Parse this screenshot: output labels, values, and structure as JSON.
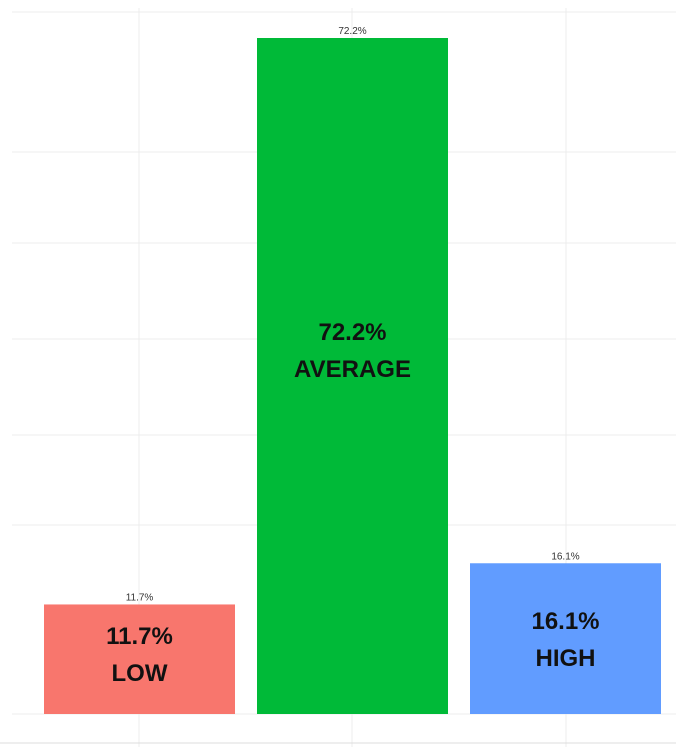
{
  "chart_data": {
    "type": "bar",
    "categories": [
      "LOW",
      "AVERAGE",
      "HIGH"
    ],
    "values": [
      11.7,
      72.2,
      16.1
    ],
    "value_labels": [
      "11.7%",
      "72.2%",
      "16.1%"
    ],
    "inner_labels": [
      {
        "value": "11.7%",
        "category": "LOW"
      },
      {
        "value": "72.2%",
        "category": "AVERAGE"
      },
      {
        "value": "16.1%",
        "category": "HIGH"
      }
    ],
    "colors": [
      "#f8766d",
      "#00ba38",
      "#619cff"
    ],
    "grid": true,
    "ylim": [
      0,
      76
    ]
  }
}
